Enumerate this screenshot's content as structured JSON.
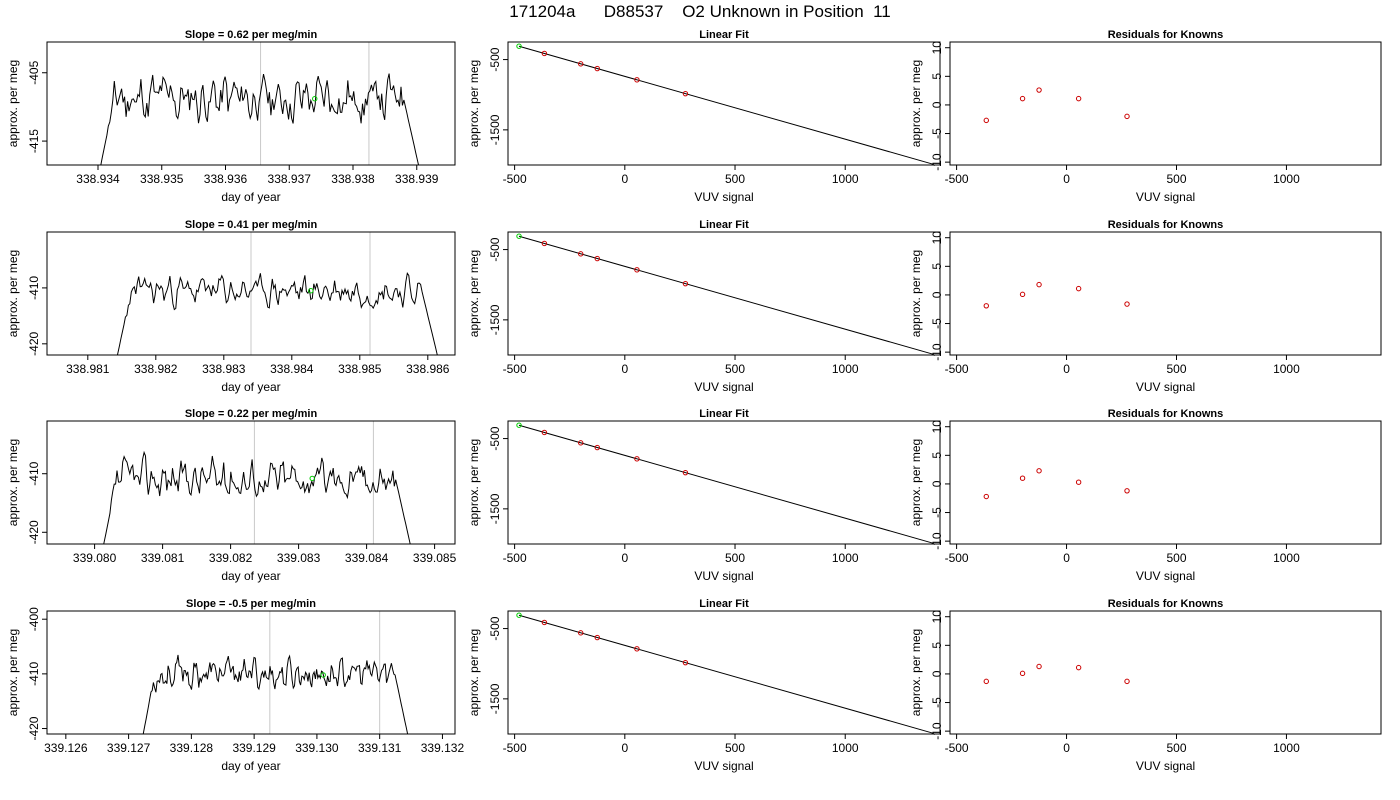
{
  "title": "171204a      D88537    O2 Unknown in Position  11",
  "colors": {
    "line": "#000000",
    "box": "#000000",
    "grid": "#c8c8c8",
    "green": "#00cc00",
    "red": "#cc0000"
  },
  "chart_data": [
    {
      "row": 0,
      "panels": [
        {
          "type": "line",
          "title": "Slope =  0.62  per meg/min",
          "xlabel": "day of year",
          "ylabel": "approx. per meg",
          "xlim": [
            338.9332,
            338.9396
          ],
          "ylim": [
            -418.5,
            -400.5
          ],
          "xticks": [
            "338.934",
            "338.935",
            "338.936",
            "338.937",
            "338.938",
            "338.939"
          ],
          "xtick_values": [
            338.934,
            338.935,
            338.936,
            338.937,
            338.938,
            338.939
          ],
          "yticks": [
            "-405",
            "-415"
          ],
          "ytick_values": [
            -405,
            -415
          ],
          "vlines": [
            338.93655,
            338.93825
          ],
          "x_start": 338.934,
          "x_end": 338.9391,
          "mean": -408.8,
          "amp": 2.2,
          "seed": 11,
          "marker": {
            "x": 338.9374,
            "y": -408.8
          }
        },
        {
          "type": "scatter",
          "title": "Linear Fit",
          "xlabel": "VUV signal",
          "ylabel": "approx. per meg",
          "xlim": [
            -530,
            1430
          ],
          "ylim": [
            -2000,
            -250
          ],
          "xticks": [
            "-500",
            "0",
            "500",
            "1000"
          ],
          "xtick_values": [
            -500,
            0,
            500,
            1000
          ],
          "yticks": [
            "-500",
            "-1500"
          ],
          "ytick_values": [
            -500,
            -1500
          ],
          "fit": {
            "x": [
              -480,
              1400
            ],
            "y": [
              -310,
              -1990
            ]
          },
          "points": [
            {
              "x": -365,
              "y": -413
            },
            {
              "x": -200,
              "y": -561
            },
            {
              "x": -125,
              "y": -628
            },
            {
              "x": 55,
              "y": -788
            },
            {
              "x": 275,
              "y": -985
            }
          ],
          "highlight": {
            "x": -480,
            "y": -310
          }
        },
        {
          "type": "scatter",
          "title": "Residuals for Knowns",
          "xlabel": "VUV signal",
          "ylabel": "approx. per meg",
          "xlim": [
            -530,
            1430
          ],
          "ylim": [
            -10.5,
            11
          ],
          "xticks": [
            "-500",
            "0",
            "500",
            "1000"
          ],
          "xtick_values": [
            -500,
            0,
            500,
            1000
          ],
          "yticks": [
            "-10",
            "-5",
            "0",
            "5",
            "10"
          ],
          "ytick_values": [
            -10,
            -5,
            0,
            5,
            10
          ],
          "points": [
            {
              "x": -365,
              "y": -2.7
            },
            {
              "x": -200,
              "y": 1.1
            },
            {
              "x": -125,
              "y": 2.6
            },
            {
              "x": 55,
              "y": 1.1
            },
            {
              "x": 275,
              "y": -2.0
            }
          ]
        }
      ]
    },
    {
      "row": 1,
      "panels": [
        {
          "type": "line",
          "title": "Slope =  0.41  per meg/min",
          "xlabel": "day of year",
          "ylabel": "approx. per meg",
          "xlim": [
            338.9804,
            338.9864
          ],
          "ylim": [
            -422,
            -400
          ],
          "xticks": [
            "338.981",
            "338.982",
            "338.983",
            "338.984",
            "338.985",
            "338.986"
          ],
          "xtick_values": [
            338.981,
            338.982,
            338.983,
            338.984,
            338.985,
            338.986
          ],
          "yticks": [
            "-410",
            "-420"
          ],
          "ytick_values": [
            -410,
            -420
          ],
          "vlines": [
            338.9834,
            338.98515
          ],
          "x_start": 338.9814,
          "x_end": 338.9862,
          "mean": -410.5,
          "amp": 1.6,
          "seed": 23,
          "marker": {
            "x": 338.98428,
            "y": -410.5
          }
        },
        {
          "type": "scatter",
          "title": "Linear Fit",
          "xlabel": "VUV signal",
          "ylabel": "approx. per meg",
          "xlim": [
            -530,
            1430
          ],
          "ylim": [
            -2000,
            -250
          ],
          "xticks": [
            "-500",
            "0",
            "500",
            "1000"
          ],
          "xtick_values": [
            -500,
            0,
            500,
            1000
          ],
          "yticks": [
            "-500",
            "-1500"
          ],
          "ytick_values": [
            -500,
            -1500
          ],
          "fit": {
            "x": [
              -480,
              1400
            ],
            "y": [
              -310,
              -1990
            ]
          },
          "points": [
            {
              "x": -365,
              "y": -413
            },
            {
              "x": -200,
              "y": -561
            },
            {
              "x": -125,
              "y": -628
            },
            {
              "x": 55,
              "y": -788
            },
            {
              "x": 275,
              "y": -985
            }
          ],
          "highlight": {
            "x": -480,
            "y": -310
          }
        },
        {
          "type": "scatter",
          "title": "Residuals for Knowns",
          "xlabel": "VUV signal",
          "ylabel": "approx. per meg",
          "xlim": [
            -530,
            1430
          ],
          "ylim": [
            -10.5,
            11
          ],
          "xticks": [
            "-500",
            "0",
            "500",
            "1000"
          ],
          "xtick_values": [
            -500,
            0,
            500,
            1000
          ],
          "yticks": [
            "-10",
            "-5",
            "0",
            "5",
            "10"
          ],
          "ytick_values": [
            -10,
            -5,
            0,
            5,
            10
          ],
          "points": [
            {
              "x": -365,
              "y": -1.9
            },
            {
              "x": -200,
              "y": 0.1
            },
            {
              "x": -125,
              "y": 1.8
            },
            {
              "x": 55,
              "y": 1.1
            },
            {
              "x": 275,
              "y": -1.6
            }
          ]
        }
      ]
    },
    {
      "row": 2,
      "panels": [
        {
          "type": "line",
          "title": "Slope =  0.22  per meg/min",
          "xlabel": "day of year",
          "ylabel": "approx. per meg",
          "xlim": [
            339.0793,
            339.0853
          ],
          "ylim": [
            -422,
            -401
          ],
          "xticks": [
            "339.080",
            "339.081",
            "339.082",
            "339.083",
            "339.084",
            "339.085"
          ],
          "xtick_values": [
            339.08,
            339.081,
            339.082,
            339.083,
            339.084,
            339.085
          ],
          "yticks": [
            "-410",
            "-420"
          ],
          "ytick_values": [
            -410,
            -420
          ],
          "vlines": [
            339.08235,
            339.0841
          ],
          "x_start": 339.0801,
          "x_end": 339.0847,
          "mean": -410.8,
          "amp": 2.0,
          "seed": 37,
          "marker": {
            "x": 339.0832,
            "y": -410.8
          }
        },
        {
          "type": "scatter",
          "title": "Linear Fit",
          "xlabel": "VUV signal",
          "ylabel": "approx. per meg",
          "xlim": [
            -530,
            1430
          ],
          "ylim": [
            -2000,
            -250
          ],
          "xticks": [
            "-500",
            "0",
            "500",
            "1000"
          ],
          "xtick_values": [
            -500,
            0,
            500,
            1000
          ],
          "yticks": [
            "-500",
            "-1500"
          ],
          "ytick_values": [
            -500,
            -1500
          ],
          "fit": {
            "x": [
              -480,
              1400
            ],
            "y": [
              -310,
              -1990
            ]
          },
          "points": [
            {
              "x": -365,
              "y": -413
            },
            {
              "x": -200,
              "y": -561
            },
            {
              "x": -125,
              "y": -628
            },
            {
              "x": 55,
              "y": -788
            },
            {
              "x": 275,
              "y": -985
            }
          ],
          "highlight": {
            "x": -480,
            "y": -310
          }
        },
        {
          "type": "scatter",
          "title": "Residuals for Knowns",
          "xlabel": "VUV signal",
          "ylabel": "approx. per meg",
          "xlim": [
            -530,
            1430
          ],
          "ylim": [
            -10.5,
            11
          ],
          "xticks": [
            "-500",
            "0",
            "500",
            "1000"
          ],
          "xtick_values": [
            -500,
            0,
            500,
            1000
          ],
          "yticks": [
            "-10",
            "-5",
            "0",
            "5",
            "10"
          ],
          "ytick_values": [
            -10,
            -5,
            0,
            5,
            10
          ],
          "points": [
            {
              "x": -365,
              "y": -2.2
            },
            {
              "x": -200,
              "y": 1.0
            },
            {
              "x": -125,
              "y": 2.3
            },
            {
              "x": 55,
              "y": 0.3
            },
            {
              "x": 275,
              "y": -1.2
            }
          ]
        }
      ]
    },
    {
      "row": 3,
      "panels": [
        {
          "type": "line",
          "title": "Slope =  -0.5  per meg/min",
          "xlabel": "day of year",
          "ylabel": "approx. per meg",
          "xlim": [
            339.1257,
            339.1322
          ],
          "ylim": [
            -421,
            -398.5
          ],
          "xticks": [
            "339.126",
            "339.127",
            "339.128",
            "339.129",
            "339.130",
            "339.131",
            "339.132"
          ],
          "xtick_values": [
            339.126,
            339.127,
            339.128,
            339.129,
            339.13,
            339.131,
            339.132
          ],
          "yticks": [
            "-400",
            "-410",
            "-420"
          ],
          "ytick_values": [
            -400,
            -410,
            -420
          ],
          "vlines": [
            339.12925,
            339.131
          ],
          "x_start": 339.1272,
          "x_end": 339.1315,
          "mean": -410.0,
          "amp": 1.7,
          "seed": 53,
          "marker": {
            "x": 339.1301,
            "y": -410.2
          }
        },
        {
          "type": "scatter",
          "title": "Linear Fit",
          "xlabel": "VUV signal",
          "ylabel": "approx. per meg",
          "xlim": [
            -530,
            1430
          ],
          "ylim": [
            -2000,
            -250
          ],
          "xticks": [
            "-500",
            "0",
            "500",
            "1000"
          ],
          "xtick_values": [
            -500,
            0,
            500,
            1000
          ],
          "yticks": [
            "-500",
            "-1500"
          ],
          "ytick_values": [
            -500,
            -1500
          ],
          "fit": {
            "x": [
              -480,
              1400
            ],
            "y": [
              -310,
              -1990
            ]
          },
          "points": [
            {
              "x": -365,
              "y": -413
            },
            {
              "x": -200,
              "y": -561
            },
            {
              "x": -125,
              "y": -628
            },
            {
              "x": 55,
              "y": -788
            },
            {
              "x": 275,
              "y": -985
            }
          ],
          "highlight": {
            "x": -480,
            "y": -310
          }
        },
        {
          "type": "scatter",
          "title": "Residuals for Knowns",
          "xlabel": "VUV signal",
          "ylabel": "approx. per meg",
          "xlim": [
            -530,
            1430
          ],
          "ylim": [
            -10.5,
            11
          ],
          "xticks": [
            "-500",
            "0",
            "500",
            "1000"
          ],
          "xtick_values": [
            -500,
            0,
            500,
            1000
          ],
          "yticks": [
            "-10",
            "-5",
            "0",
            "5",
            "10"
          ],
          "ytick_values": [
            -10,
            -5,
            0,
            5,
            10
          ],
          "points": [
            {
              "x": -365,
              "y": -1.3
            },
            {
              "x": -200,
              "y": 0.1
            },
            {
              "x": -125,
              "y": 1.3
            },
            {
              "x": 55,
              "y": 1.1
            },
            {
              "x": 275,
              "y": -1.3
            }
          ]
        }
      ]
    }
  ]
}
